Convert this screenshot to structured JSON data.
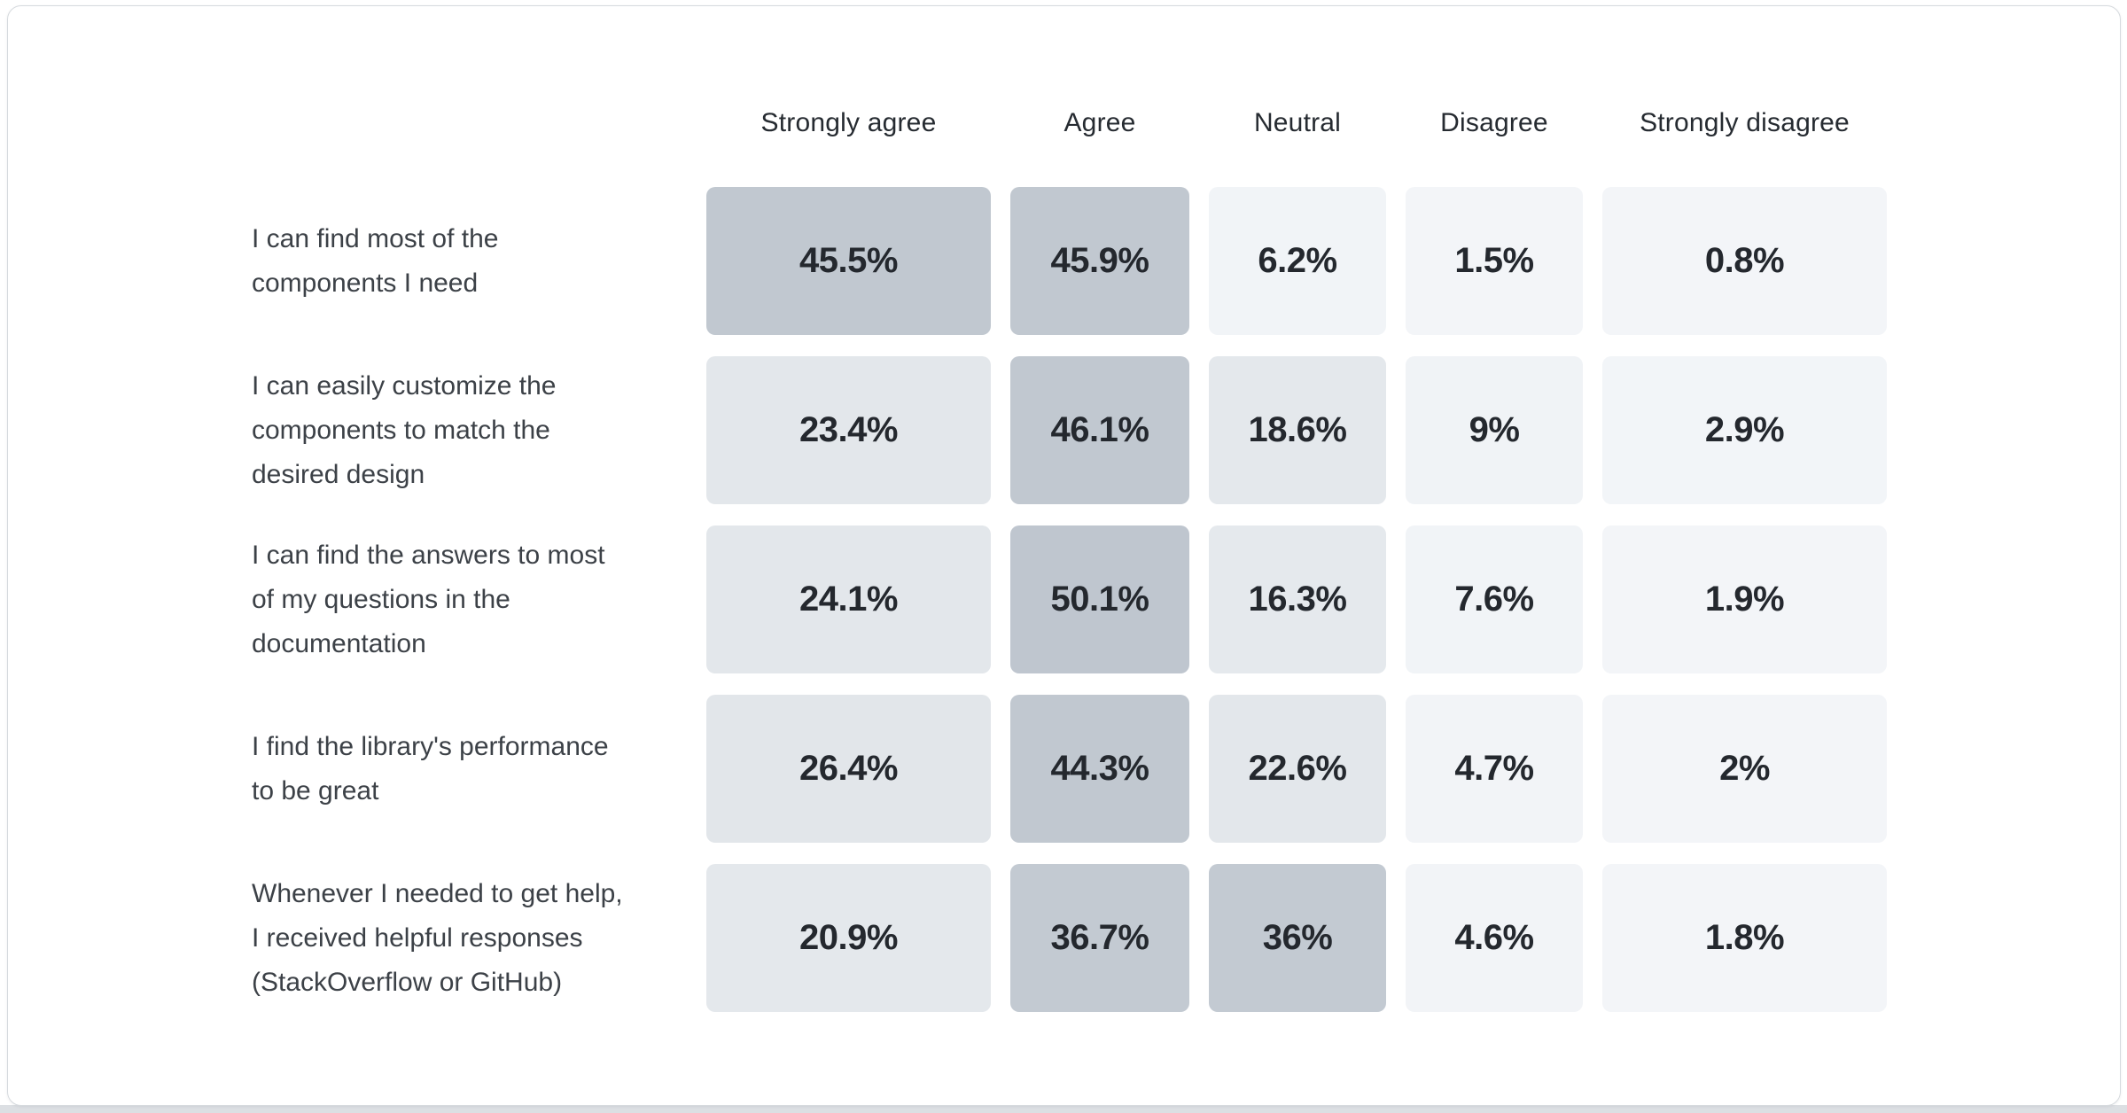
{
  "page": {
    "card_background": "#ffffff",
    "card_border_color": "#d6dade",
    "bottom_strip_color": "#dcdfe3"
  },
  "chart_data": {
    "type": "heatmap",
    "title": "",
    "xlabel": "",
    "ylabel": "",
    "legend": "none",
    "value_unit": "%",
    "color_scale": {
      "min_color": "#f5f7fa",
      "max_color": "#bfc6cf",
      "meaning": "darker cell = higher percentage of responses"
    },
    "columns": [
      "Strongly agree",
      "Agree",
      "Neutral",
      "Disagree",
      "Strongly disagree"
    ],
    "rows": [
      {
        "label": "I can find most of the components I need",
        "label_lines": [
          "I can find most of the",
          "components I need"
        ],
        "values": [
          45.5,
          45.9,
          6.2,
          1.5,
          0.8
        ],
        "display": [
          "45.5%",
          "45.9%",
          "6.2%",
          "1.5%",
          "0.8%"
        ],
        "colors": [
          "#c1c8d0",
          "#c1c8d0",
          "#f1f4f7",
          "#f3f5f8",
          "#f3f5f8"
        ]
      },
      {
        "label": "I can easily customize the components to match the desired design",
        "label_lines": [
          "I can easily customize the",
          "components to match the",
          "desired design"
        ],
        "values": [
          23.4,
          46.1,
          18.6,
          9,
          2.9
        ],
        "display": [
          "23.4%",
          "46.1%",
          "18.6%",
          "9%",
          "2.9%"
        ],
        "colors": [
          "#e3e7eb",
          "#c1c8d0",
          "#e4e8ec",
          "#f0f3f6",
          "#f2f5f8"
        ]
      },
      {
        "label": "I can find the answers to most of my questions in the documentation",
        "label_lines": [
          "I can find the answers to most",
          "of my questions in the",
          "documentation"
        ],
        "values": [
          24.1,
          50.1,
          16.3,
          7.6,
          1.9
        ],
        "display": [
          "24.1%",
          "50.1%",
          "16.3%",
          "7.6%",
          "1.9%"
        ],
        "colors": [
          "#e3e7eb",
          "#bfc6cf",
          "#e5e9ed",
          "#f1f4f7",
          "#f3f5f8"
        ]
      },
      {
        "label": "I find the library's performance to be great",
        "label_lines": [
          "I find the library's performance",
          "to be great"
        ],
        "values": [
          26.4,
          44.3,
          22.6,
          4.7,
          2
        ],
        "display": [
          "26.4%",
          "44.3%",
          "22.6%",
          "4.7%",
          "2%"
        ],
        "colors": [
          "#e2e6ea",
          "#c1c8d0",
          "#e3e7eb",
          "#f2f4f7",
          "#f3f5f8"
        ]
      },
      {
        "label": "Whenever I needed to get help, I received helpful responses (StackOverflow or GitHub)",
        "label_lines": [
          "Whenever I needed to get help,",
          "I received helpful responses",
          "(StackOverflow or GitHub)"
        ],
        "values": [
          20.9,
          36.7,
          36,
          4.6,
          1.8
        ],
        "display": [
          "20.9%",
          "36.7%",
          "36%",
          "4.6%",
          "1.8%"
        ],
        "colors": [
          "#e4e8ec",
          "#c3cad2",
          "#c3cad2",
          "#f2f4f7",
          "#f3f5f8"
        ]
      }
    ]
  }
}
